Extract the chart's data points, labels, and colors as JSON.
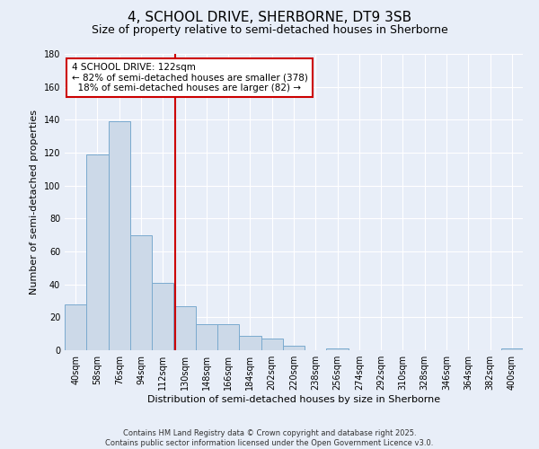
{
  "title": "4, SCHOOL DRIVE, SHERBORNE, DT9 3SB",
  "subtitle": "Size of property relative to semi-detached houses in Sherborne",
  "xlabel": "Distribution of semi-detached houses by size in Sherborne",
  "ylabel": "Number of semi-detached properties",
  "categories": [
    "40sqm",
    "58sqm",
    "76sqm",
    "94sqm",
    "112sqm",
    "130sqm",
    "148sqm",
    "166sqm",
    "184sqm",
    "202sqm",
    "220sqm",
    "238sqm",
    "256sqm",
    "274sqm",
    "292sqm",
    "310sqm",
    "328sqm",
    "346sqm",
    "364sqm",
    "382sqm",
    "400sqm"
  ],
  "values": [
    28,
    119,
    139,
    70,
    41,
    27,
    16,
    16,
    9,
    7,
    3,
    0,
    1,
    0,
    0,
    0,
    0,
    0,
    0,
    0,
    1
  ],
  "bar_color": "#ccd9e8",
  "bar_edge_color": "#7aaace",
  "background_color": "#e8eef8",
  "grid_color": "#ffffff",
  "vline_x": 4.55,
  "vline_color": "#cc0000",
  "annotation_text": "4 SCHOOL DRIVE: 122sqm\n← 82% of semi-detached houses are smaller (378)\n  18% of semi-detached houses are larger (82) →",
  "annotation_box_color": "#ffffff",
  "annotation_box_edge": "#cc0000",
  "ylim": [
    0,
    180
  ],
  "yticks": [
    0,
    20,
    40,
    60,
    80,
    100,
    120,
    140,
    160,
    180
  ],
  "copyright_text": "Contains HM Land Registry data © Crown copyright and database right 2025.\nContains public sector information licensed under the Open Government Licence v3.0.",
  "title_fontsize": 11,
  "subtitle_fontsize": 9,
  "xlabel_fontsize": 8,
  "ylabel_fontsize": 8,
  "tick_fontsize": 7,
  "annot_fontsize": 7.5,
  "copyright_fontsize": 6
}
